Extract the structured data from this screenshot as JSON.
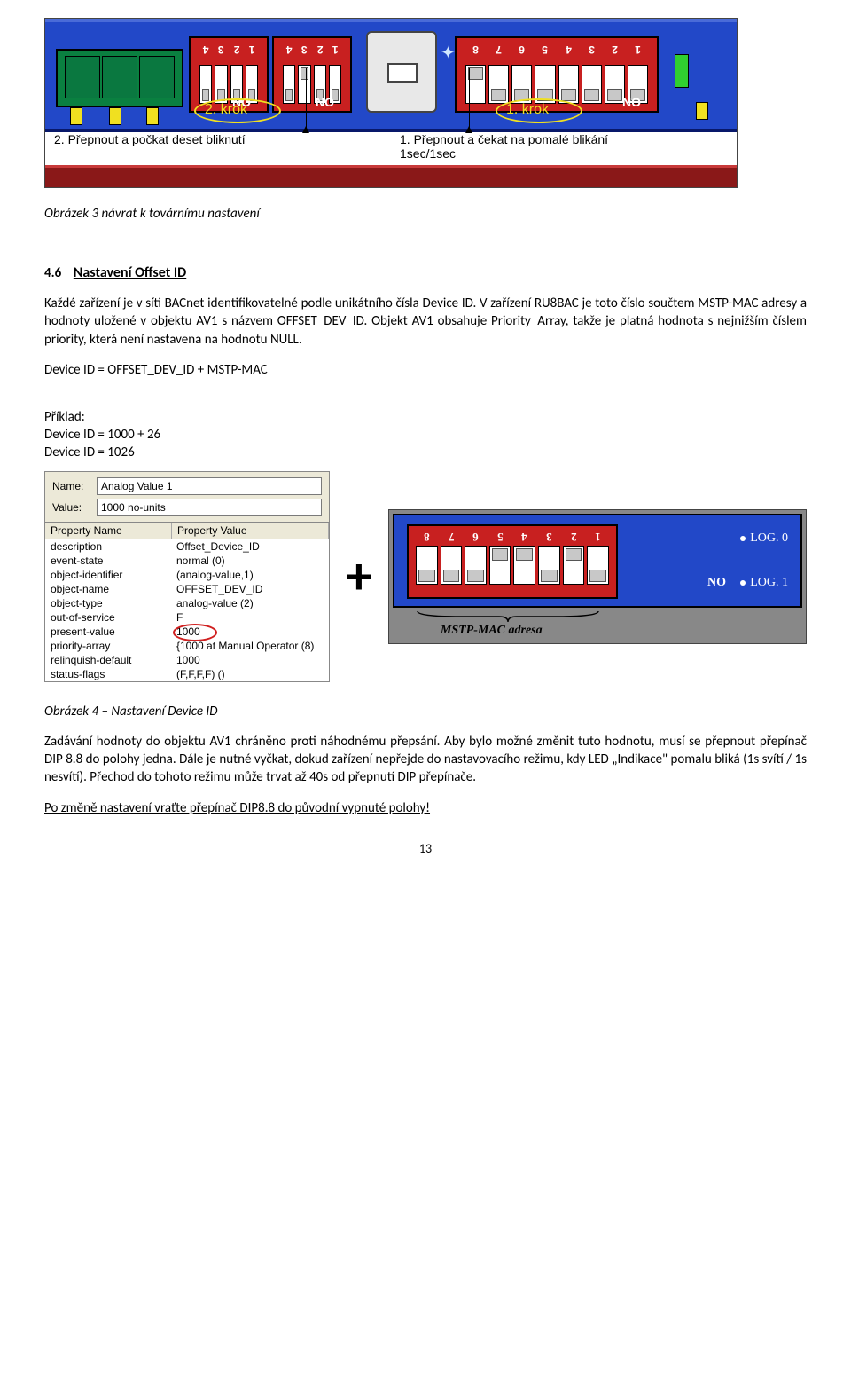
{
  "board1": {
    "krok2": "2. krok",
    "krok1": "1. krok",
    "caption2": "2. Přepnout a počkat deset bliknutí",
    "caption1_l1": "1. Přepnout a čekat na pomalé blikání",
    "caption1_l2": "1sec/1sec",
    "no": "NO",
    "chipA_nums": [
      "1",
      "2",
      "3",
      "4"
    ],
    "chipB_nums": [
      "1",
      "2",
      "3",
      "4"
    ],
    "chipC_nums": [
      "1",
      "2",
      "3",
      "4",
      "5",
      "6",
      "7",
      "8"
    ],
    "chipA_states": [
      "down",
      "down",
      "down",
      "down"
    ],
    "chipB_states": [
      "down",
      "down",
      "up",
      "down"
    ],
    "chipC_states": [
      "down",
      "down",
      "down",
      "down",
      "down",
      "down",
      "down",
      "up"
    ]
  },
  "captions": {
    "fig3": "Obrázek 3 návrat k továrnímu nastavení",
    "fig4": "Obrázek 4 – Nastavení Device ID"
  },
  "section": {
    "num": "4.6",
    "title": "Nastavení Offset ID"
  },
  "paras": {
    "p1": "Každé zařízení je v síti BACnet identifikovatelné podle unikátního čísla Device ID. V zařízení RU8BAC je toto číslo součtem MSTP-MAC  adresy a hodnoty uložené v objektu AV1 s názvem OFFSET_DEV_ID. Objekt AV1 obsahuje Priority_Array, takže je platná hodnota s nejnižším číslem priority, která není nastavena na hodnotu NULL.",
    "eq": "Device ID =  OFFSET_DEV_ID + MSTP-MAC",
    "ex_label": "Příklad:",
    "ex1": "Device ID =  1000 + 26",
    "ex2": "Device ID =  1026",
    "p2": "Zadávání hodnoty do objektu AV1  chráněno proti náhodnému přepsání. Aby bylo možné změnit tuto hodnotu, musí se přepnout přepínač DIP 8.8 do polohy jedna. Dále je nutné vyčkat, dokud zařízení nepřejde do nastavovacího režimu, kdy LED „Indikace\" pomalu bliká (1s svítí / 1s nesvítí). Přechod do tohoto režimu může trvat až 40s od přepnutí DIP přepínače.",
    "p3": "Po změně nastavení vraťte přepínač DIP8.8 do původní vypnuté polohy!"
  },
  "propPanel": {
    "nameLabel": "Name:",
    "nameVal": "Analog Value 1",
    "valueLabel": "Value:",
    "valueVal": "1000 no-units",
    "colA": "Property Name",
    "colB": "Property Value",
    "rows": [
      [
        "description",
        "Offset_Device_ID"
      ],
      [
        "event-state",
        "normal (0)"
      ],
      [
        "object-identifier",
        "(analog-value,1)"
      ],
      [
        "object-name",
        "OFFSET_DEV_ID"
      ],
      [
        "object-type",
        "analog-value (2)"
      ],
      [
        "out-of-service",
        "F"
      ],
      [
        "present-value",
        "1000"
      ],
      [
        "priority-array",
        "{1000 at Manual Operator (8)"
      ],
      [
        "relinquish-default",
        "1000"
      ],
      [
        "status-flags",
        "(F,F,F,F) ()"
      ]
    ],
    "highlight_row": 6
  },
  "plus": "+",
  "board2": {
    "nums": [
      "1",
      "2",
      "3",
      "4",
      "5",
      "6",
      "7",
      "8"
    ],
    "states": [
      "down",
      "up",
      "down",
      "up",
      "up",
      "down",
      "down",
      "down"
    ],
    "no": "NO",
    "log0": "LOG. 0",
    "log1": "LOG. 1",
    "brace": "MSTP-MAC adresa"
  },
  "pagenum": "13"
}
